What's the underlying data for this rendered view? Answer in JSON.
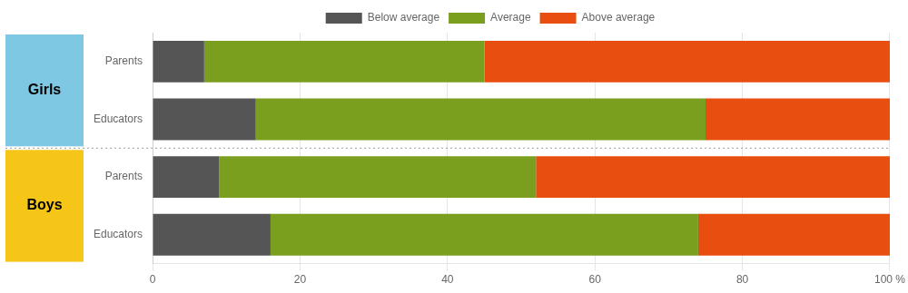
{
  "chart_data": {
    "type": "bar",
    "orientation": "horizontal",
    "stacked": true,
    "groups": [
      {
        "name": "Girls",
        "color": "#7EC8E3",
        "categories": [
          "Parents",
          "Educators"
        ]
      },
      {
        "name": "Boys",
        "color": "#F5C518",
        "categories": [
          "Parents",
          "Educators"
        ]
      }
    ],
    "series": [
      {
        "name": "Below average",
        "color": "#555555",
        "values": [
          7,
          14,
          9,
          16
        ]
      },
      {
        "name": "Average",
        "color": "#7A9E1E",
        "values": [
          38,
          61,
          43,
          58
        ]
      },
      {
        "name": "Above average",
        "color": "#E84E0F",
        "values": [
          55,
          25,
          48,
          26
        ]
      }
    ],
    "xlim": [
      0,
      100
    ],
    "xticks": [
      0,
      20,
      40,
      60,
      80,
      {
        "value": 100,
        "label": "100 %"
      }
    ],
    "grid": true,
    "legend": "top"
  }
}
